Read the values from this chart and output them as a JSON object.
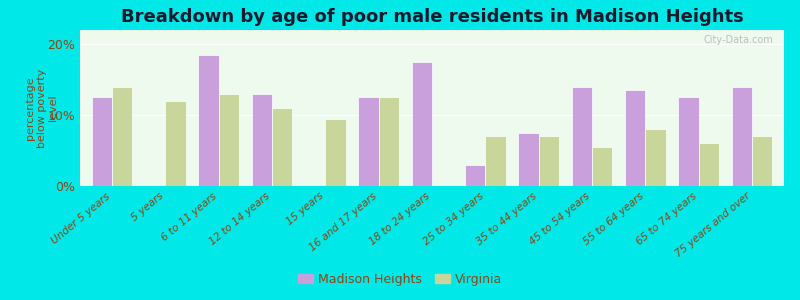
{
  "title": "Breakdown by age of poor male residents in Madison Heights",
  "ylabel": "percentage\nbelow poverty\nlevel",
  "categories": [
    "Under 5 years",
    "5 years",
    "6 to 11 years",
    "12 to 14 years",
    "15 years",
    "16 and 17 years",
    "18 to 24 years",
    "25 to 34 years",
    "35 to 44 years",
    "45 to 54 years",
    "55 to 64 years",
    "65 to 74 years",
    "75 years and over"
  ],
  "madison_heights": [
    12.5,
    0.0,
    18.5,
    13.0,
    0.0,
    12.5,
    17.5,
    3.0,
    7.5,
    14.0,
    13.5,
    12.5,
    14.0
  ],
  "virginia": [
    14.0,
    12.0,
    13.0,
    11.0,
    9.5,
    12.5,
    0.0,
    7.0,
    7.0,
    5.5,
    8.0,
    6.0,
    7.0
  ],
  "madison_color": "#c9a0dc",
  "virginia_color": "#c8d59b",
  "background_color": "#edfaed",
  "outer_background": "#00e8e8",
  "title_color": "#1a1a2e",
  "tick_color": "#8b4513",
  "ylim": [
    0,
    22
  ],
  "ytick_labels": [
    "0%",
    "10%",
    "20%"
  ],
  "bar_width": 0.38,
  "legend_labels": [
    "Madison Heights",
    "Virginia"
  ],
  "watermark": "City-Data.com"
}
